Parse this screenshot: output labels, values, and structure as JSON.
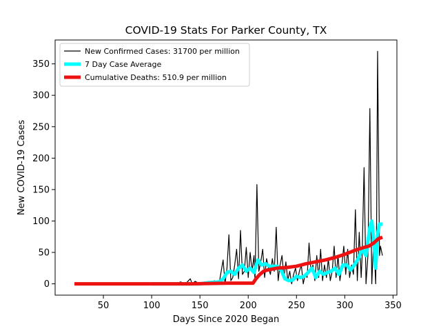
{
  "chart_data": {
    "type": "line",
    "title": "COVID-19 Stats For Parker County, TX",
    "xlabel": "Days Since 2020 Began",
    "ylabel": "New COVID-19 Cases",
    "xlim": [
      0,
      354
    ],
    "ylim": [
      -18,
      388
    ],
    "xticks": [
      50,
      100,
      150,
      200,
      250,
      300,
      350
    ],
    "yticks": [
      0,
      50,
      100,
      150,
      200,
      250,
      300,
      350
    ],
    "legend_position": "upper-left",
    "series": [
      {
        "name": "New Confirmed Cases: 31700 per million",
        "color": "#000000",
        "style": "thin",
        "points": [
          [
            20,
            0
          ],
          [
            60,
            0
          ],
          [
            100,
            0
          ],
          [
            110,
            1
          ],
          [
            115,
            0
          ],
          [
            120,
            2
          ],
          [
            125,
            0
          ],
          [
            130,
            3
          ],
          [
            135,
            0
          ],
          [
            140,
            8
          ],
          [
            142,
            0
          ],
          [
            145,
            4
          ],
          [
            150,
            0
          ],
          [
            155,
            3
          ],
          [
            160,
            1
          ],
          [
            165,
            5
          ],
          [
            170,
            2
          ],
          [
            174,
            38
          ],
          [
            176,
            0
          ],
          [
            178,
            25
          ],
          [
            180,
            78
          ],
          [
            182,
            5
          ],
          [
            184,
            10
          ],
          [
            186,
            30
          ],
          [
            188,
            55
          ],
          [
            190,
            8
          ],
          [
            192,
            85
          ],
          [
            194,
            15
          ],
          [
            196,
            20
          ],
          [
            198,
            58
          ],
          [
            200,
            10
          ],
          [
            202,
            50
          ],
          [
            204,
            20
          ],
          [
            206,
            45
          ],
          [
            207,
            5
          ],
          [
            209,
            158
          ],
          [
            211,
            20
          ],
          [
            213,
            35
          ],
          [
            215,
            55
          ],
          [
            217,
            10
          ],
          [
            219,
            40
          ],
          [
            221,
            25
          ],
          [
            223,
            15
          ],
          [
            225,
            40
          ],
          [
            227,
            20
          ],
          [
            229,
            90
          ],
          [
            231,
            5
          ],
          [
            233,
            30
          ],
          [
            235,
            45
          ],
          [
            237,
            10
          ],
          [
            239,
            35
          ],
          [
            241,
            5
          ],
          [
            243,
            20
          ],
          [
            245,
            0
          ],
          [
            247,
            15
          ],
          [
            249,
            25
          ],
          [
            251,
            5
          ],
          [
            253,
            20
          ],
          [
            255,
            30
          ],
          [
            257,
            0
          ],
          [
            259,
            15
          ],
          [
            261,
            10
          ],
          [
            263,
            65
          ],
          [
            265,
            20
          ],
          [
            267,
            30
          ],
          [
            269,
            5
          ],
          [
            271,
            45
          ],
          [
            273,
            10
          ],
          [
            275,
            55
          ],
          [
            277,
            5
          ],
          [
            279,
            30
          ],
          [
            281,
            10
          ],
          [
            283,
            40
          ],
          [
            285,
            5
          ],
          [
            287,
            20
          ],
          [
            289,
            60
          ],
          [
            291,
            10
          ],
          [
            293,
            45
          ],
          [
            295,
            5
          ],
          [
            297,
            30
          ],
          [
            299,
            60
          ],
          [
            301,
            15
          ],
          [
            303,
            55
          ],
          [
            305,
            10
          ],
          [
            307,
            30
          ],
          [
            309,
            15
          ],
          [
            311,
            118
          ],
          [
            313,
            5
          ],
          [
            315,
            82
          ],
          [
            317,
            10
          ],
          [
            318,
            45
          ],
          [
            320,
            185
          ],
          [
            322,
            0
          ],
          [
            324,
            45
          ],
          [
            326,
            279
          ],
          [
            328,
            0
          ],
          [
            330,
            75
          ],
          [
            332,
            0
          ],
          [
            333,
            100
          ],
          [
            334,
            370
          ],
          [
            336,
            45
          ],
          [
            337,
            60
          ],
          [
            339,
            45
          ]
        ]
      },
      {
        "name": "7 Day Case Average",
        "color": "#00ffff",
        "style": "thick",
        "points": [
          [
            100,
            0
          ],
          [
            140,
            0
          ],
          [
            150,
            0
          ],
          [
            160,
            2
          ],
          [
            170,
            3
          ],
          [
            174,
            8
          ],
          [
            178,
            18
          ],
          [
            182,
            20
          ],
          [
            186,
            15
          ],
          [
            190,
            25
          ],
          [
            194,
            30
          ],
          [
            198,
            20
          ],
          [
            202,
            25
          ],
          [
            206,
            18
          ],
          [
            210,
            38
          ],
          [
            214,
            30
          ],
          [
            218,
            32
          ],
          [
            222,
            28
          ],
          [
            226,
            28
          ],
          [
            230,
            28
          ],
          [
            234,
            22
          ],
          [
            238,
            8
          ],
          [
            242,
            5
          ],
          [
            246,
            6
          ],
          [
            250,
            12
          ],
          [
            254,
            10
          ],
          [
            258,
            12
          ],
          [
            262,
            18
          ],
          [
            266,
            25
          ],
          [
            270,
            10
          ],
          [
            274,
            20
          ],
          [
            278,
            15
          ],
          [
            282,
            18
          ],
          [
            286,
            20
          ],
          [
            290,
            25
          ],
          [
            294,
            15
          ],
          [
            298,
            30
          ],
          [
            302,
            30
          ],
          [
            306,
            22
          ],
          [
            310,
            30
          ],
          [
            314,
            40
          ],
          [
            318,
            55
          ],
          [
            322,
            45
          ],
          [
            326,
            90
          ],
          [
            328,
            100
          ],
          [
            330,
            70
          ],
          [
            332,
            25
          ],
          [
            334,
            80
          ],
          [
            336,
            95
          ],
          [
            339,
            95
          ]
        ]
      },
      {
        "name": "Cumulative Deaths: 510.9 per million",
        "color": "#ee1111",
        "style": "thick",
        "points": [
          [
            20,
            0
          ],
          [
            100,
            0
          ],
          [
            140,
            0
          ],
          [
            180,
            1
          ],
          [
            200,
            1
          ],
          [
            205,
            1
          ],
          [
            208,
            8
          ],
          [
            212,
            15
          ],
          [
            216,
            20
          ],
          [
            220,
            22
          ],
          [
            230,
            25
          ],
          [
            240,
            26
          ],
          [
            250,
            28
          ],
          [
            260,
            32
          ],
          [
            270,
            35
          ],
          [
            280,
            38
          ],
          [
            290,
            42
          ],
          [
            300,
            47
          ],
          [
            310,
            53
          ],
          [
            320,
            58
          ],
          [
            325,
            60
          ],
          [
            330,
            65
          ],
          [
            335,
            72
          ],
          [
            339,
            74
          ]
        ]
      }
    ]
  }
}
